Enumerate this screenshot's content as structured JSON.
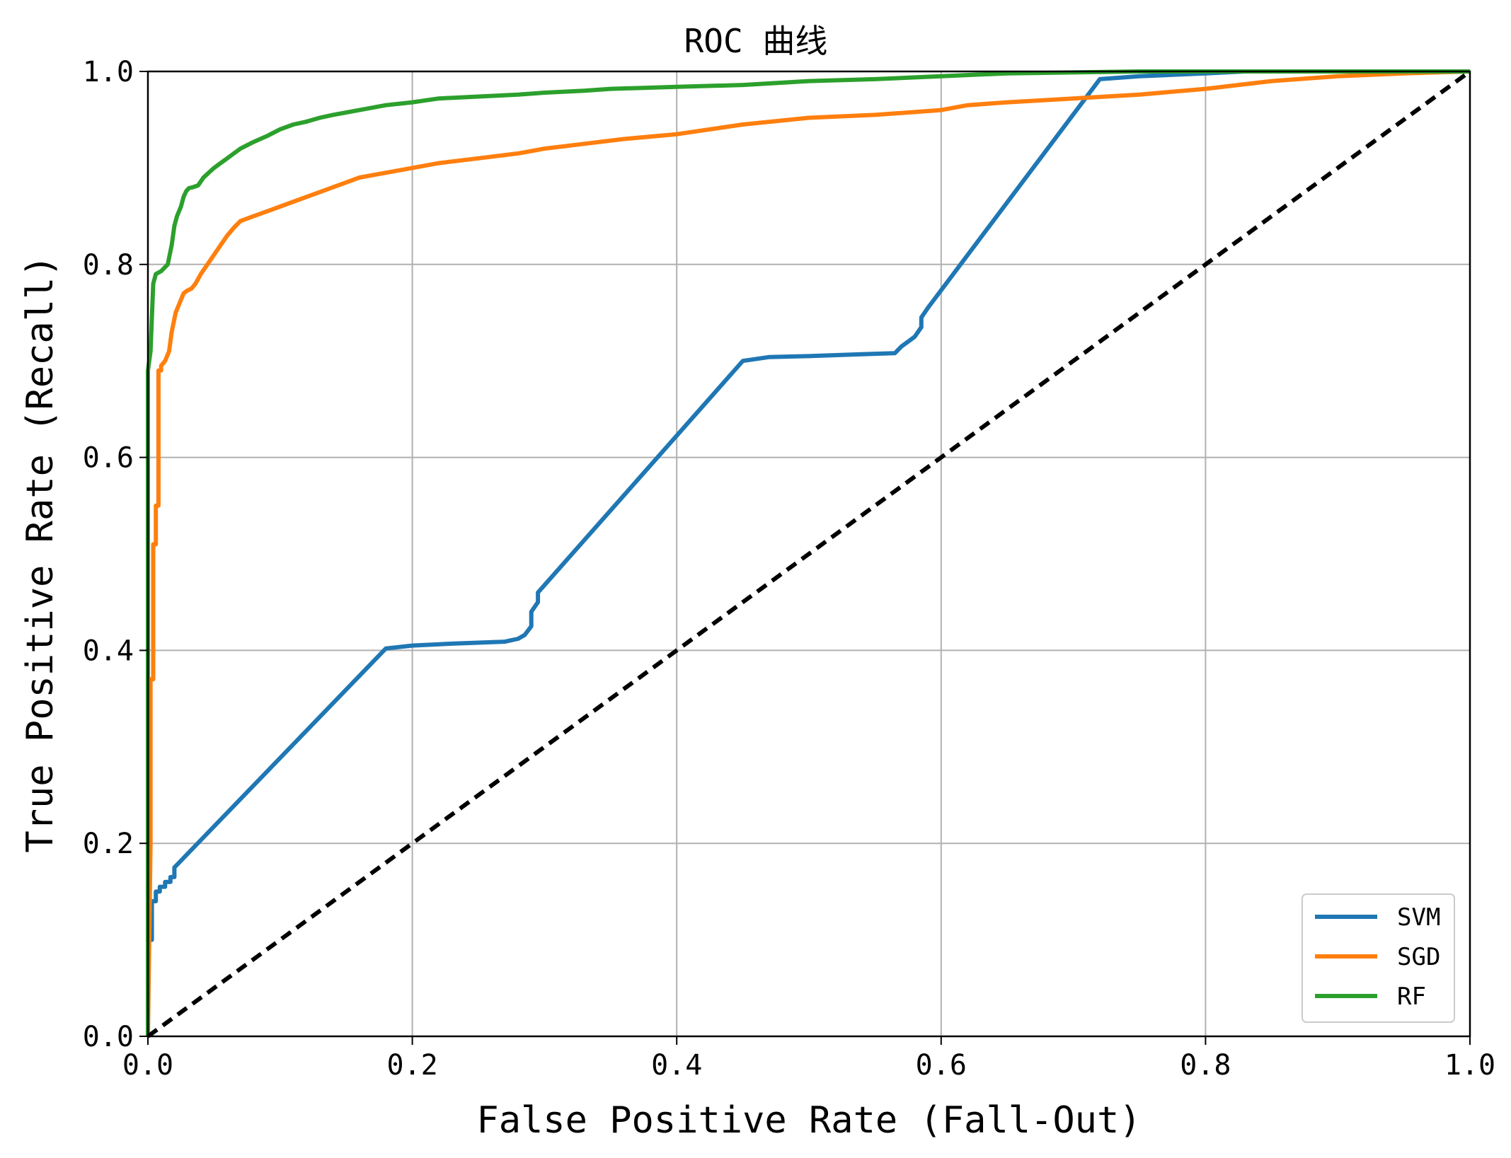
{
  "chart_data": {
    "type": "line",
    "title": "ROC 曲线",
    "xlabel": "False Positive Rate (Fall-Out)",
    "ylabel": "True Positive Rate (Recall)",
    "xlim": [
      0.0,
      1.0
    ],
    "ylim": [
      0.0,
      1.0
    ],
    "xticks": [
      "0.0",
      "0.2",
      "0.4",
      "0.6",
      "0.8",
      "1.0"
    ],
    "yticks": [
      "0.0",
      "0.2",
      "0.4",
      "0.6",
      "0.8",
      "1.0"
    ],
    "grid": true,
    "legend_position": "bottom-right",
    "series": [
      {
        "name": "SVM",
        "color": "#1f77b4",
        "x": [
          0.0,
          0.0,
          0.003,
          0.003,
          0.006,
          0.006,
          0.009,
          0.009,
          0.013,
          0.013,
          0.017,
          0.017,
          0.02,
          0.02,
          0.18,
          0.2,
          0.23,
          0.25,
          0.27,
          0.28,
          0.285,
          0.29,
          0.29,
          0.295,
          0.295,
          0.45,
          0.47,
          0.5,
          0.54,
          0.565,
          0.57,
          0.575,
          0.58,
          0.585,
          0.585,
          0.59,
          0.72,
          0.75,
          0.8,
          0.83,
          0.87,
          0.9,
          0.95,
          1.0
        ],
        "y": [
          0.0,
          0.1,
          0.1,
          0.14,
          0.14,
          0.15,
          0.15,
          0.155,
          0.155,
          0.16,
          0.16,
          0.165,
          0.165,
          0.175,
          0.402,
          0.405,
          0.407,
          0.408,
          0.409,
          0.412,
          0.416,
          0.425,
          0.44,
          0.45,
          0.46,
          0.7,
          0.704,
          0.705,
          0.707,
          0.708,
          0.715,
          0.72,
          0.725,
          0.735,
          0.745,
          0.755,
          0.992,
          0.995,
          0.998,
          1.0,
          1.0,
          1.0,
          1.0,
          1.0
        ]
      },
      {
        "name": "SGD",
        "color": "#ff7f0e",
        "x": [
          0.0,
          0.002,
          0.002,
          0.004,
          0.004,
          0.006,
          0.006,
          0.008,
          0.008,
          0.01,
          0.01,
          0.013,
          0.016,
          0.018,
          0.021,
          0.024,
          0.027,
          0.03,
          0.033,
          0.036,
          0.04,
          0.045,
          0.05,
          0.055,
          0.06,
          0.065,
          0.07,
          0.08,
          0.09,
          0.1,
          0.12,
          0.14,
          0.16,
          0.18,
          0.2,
          0.22,
          0.25,
          0.28,
          0.3,
          0.33,
          0.36,
          0.4,
          0.45,
          0.5,
          0.55,
          0.6,
          0.62,
          0.65,
          0.7,
          0.75,
          0.8,
          0.85,
          0.9,
          0.95,
          1.0
        ],
        "y": [
          0.0,
          0.2,
          0.37,
          0.37,
          0.51,
          0.51,
          0.55,
          0.55,
          0.69,
          0.69,
          0.695,
          0.7,
          0.71,
          0.73,
          0.75,
          0.76,
          0.77,
          0.773,
          0.775,
          0.78,
          0.79,
          0.8,
          0.81,
          0.82,
          0.83,
          0.838,
          0.845,
          0.85,
          0.855,
          0.86,
          0.87,
          0.88,
          0.89,
          0.895,
          0.9,
          0.905,
          0.91,
          0.915,
          0.92,
          0.925,
          0.93,
          0.935,
          0.945,
          0.952,
          0.955,
          0.96,
          0.965,
          0.968,
          0.972,
          0.976,
          0.982,
          0.99,
          0.995,
          0.998,
          1.0
        ]
      },
      {
        "name": "RF",
        "color": "#2ca02c",
        "x": [
          0.0,
          0.0,
          0.002,
          0.004,
          0.006,
          0.01,
          0.015,
          0.018,
          0.02,
          0.022,
          0.025,
          0.027,
          0.029,
          0.031,
          0.034,
          0.038,
          0.042,
          0.046,
          0.05,
          0.055,
          0.06,
          0.065,
          0.07,
          0.08,
          0.09,
          0.1,
          0.11,
          0.12,
          0.13,
          0.14,
          0.16,
          0.18,
          0.2,
          0.22,
          0.25,
          0.28,
          0.3,
          0.33,
          0.35,
          0.4,
          0.45,
          0.5,
          0.55,
          0.6,
          0.65,
          0.7,
          0.75,
          0.8,
          1.0
        ],
        "y": [
          0.0,
          0.69,
          0.71,
          0.78,
          0.79,
          0.793,
          0.8,
          0.82,
          0.84,
          0.85,
          0.86,
          0.87,
          0.876,
          0.879,
          0.88,
          0.882,
          0.89,
          0.895,
          0.9,
          0.905,
          0.91,
          0.915,
          0.92,
          0.927,
          0.933,
          0.94,
          0.945,
          0.948,
          0.952,
          0.955,
          0.96,
          0.965,
          0.968,
          0.972,
          0.974,
          0.976,
          0.978,
          0.98,
          0.982,
          0.984,
          0.986,
          0.99,
          0.992,
          0.995,
          0.998,
          0.999,
          1.0,
          1.0,
          1.0
        ]
      },
      {
        "name": "",
        "color": "#000000",
        "dashed": true,
        "x": [
          0.0,
          1.0
        ],
        "y": [
          0.0,
          1.0
        ]
      }
    ]
  }
}
